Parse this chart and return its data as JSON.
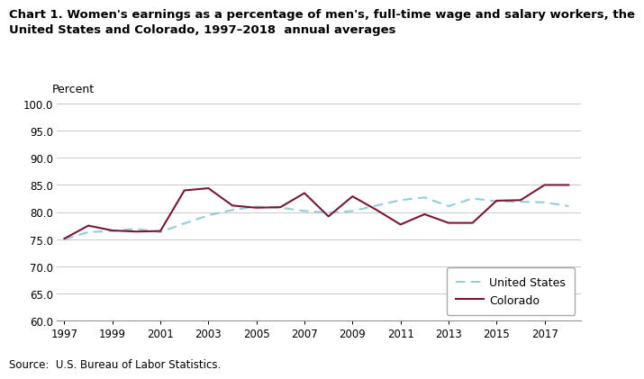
{
  "title_line1": "Chart 1. Women's earnings as a percentage of men's, full-time wage and salary workers, the",
  "title_line2": "United States and Colorado, 1997–2018  annual averages",
  "ylabel": "Percent",
  "source": "Source:  U.S. Bureau of Labor Statistics.",
  "years": [
    1997,
    1998,
    1999,
    2000,
    2001,
    2002,
    2003,
    2004,
    2005,
    2006,
    2007,
    2008,
    2009,
    2010,
    2011,
    2012,
    2013,
    2014,
    2015,
    2016,
    2017,
    2018
  ],
  "us_data": [
    75.0,
    76.3,
    76.5,
    76.9,
    76.3,
    77.9,
    79.4,
    80.4,
    81.0,
    80.8,
    80.2,
    79.9,
    80.2,
    81.2,
    82.2,
    82.7,
    81.1,
    82.5,
    82.0,
    81.9,
    81.8,
    81.1
  ],
  "co_data": [
    75.1,
    77.5,
    76.6,
    76.4,
    76.5,
    84.0,
    84.4,
    81.2,
    80.8,
    80.9,
    83.5,
    79.2,
    82.9,
    80.4,
    77.7,
    79.6,
    78.0,
    78.0,
    82.1,
    82.2,
    85.0,
    85.0
  ],
  "us_color": "#92CDDC",
  "co_color": "#7B1734",
  "ylim": [
    60.0,
    100.0
  ],
  "yticks": [
    60.0,
    65.0,
    70.0,
    75.0,
    80.0,
    85.0,
    90.0,
    95.0,
    100.0
  ],
  "xticks": [
    1997,
    1999,
    2001,
    2003,
    2005,
    2007,
    2009,
    2011,
    2013,
    2015,
    2017
  ],
  "xlim_left": 1996.7,
  "xlim_right": 2018.5,
  "bg_color": "#FFFFFF",
  "grid_color": "#C8C8C8",
  "title_fontsize": 9.5,
  "label_fontsize": 9,
  "tick_fontsize": 8.5,
  "source_fontsize": 8.5
}
